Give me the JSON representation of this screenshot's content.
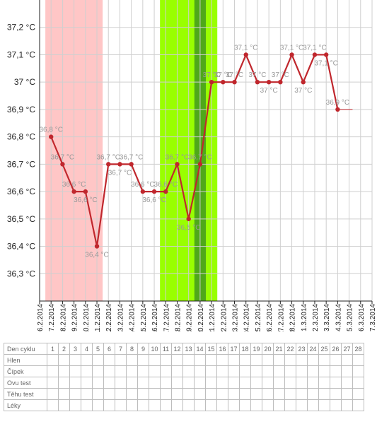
{
  "chart_data": {
    "type": "line",
    "title": "",
    "xlabel": "",
    "ylabel": "",
    "ylim": [
      36.2,
      37.3
    ],
    "y_ticks": [
      "36,3 °C",
      "36,4 °C",
      "36,5 °C",
      "36,6 °C",
      "36,7 °C",
      "36,8 °C",
      "36,9 °C",
      "37 °C",
      "37,1 °C",
      "37,2 °C"
    ],
    "y_tick_values": [
      36.3,
      36.4,
      36.5,
      36.6,
      36.7,
      36.8,
      36.9,
      37.0,
      37.1,
      37.2
    ],
    "x_labels": [
      "6.2.2014",
      "7.2.2014",
      "8.2.2014",
      "9.2.2014",
      "10.2.2014",
      "11.2.2014",
      "12.2.2014",
      "13.2.2014",
      "14.2.2014",
      "15.2.2014",
      "16.2.2014",
      "17.2.2014",
      "18.2.2014",
      "19.2.2014",
      "20.2.2014",
      "21.2.2014",
      "22.2.2014",
      "23.2.2014",
      "24.2.2014",
      "25.2.2014",
      "26.2.2014",
      "27.2.2014",
      "28.2.2014",
      "1.3.2014",
      "2.3.2014",
      "3.3.2014",
      "4.3.2014",
      "5.3.2014",
      "6.3.2014",
      "7.3.2014"
    ],
    "grid": true,
    "series": [
      {
        "color": "#c0272d",
        "x": [
          "7.2.2014",
          "8.2.2014",
          "9.2.2014",
          "10.2.2014",
          "11.2.2014",
          "12.2.2014",
          "13.2.2014",
          "14.2.2014",
          "15.2.2014",
          "16.2.2014",
          "17.2.2014",
          "18.2.2014",
          "19.2.2014",
          "20.2.2014",
          "21.2.2014",
          "22.2.2014",
          "23.2.2014",
          "24.2.2014",
          "25.2.2014",
          "26.2.2014",
          "27.2.2014",
          "28.2.2014",
          "1.3.2014",
          "2.3.2014",
          "3.3.2014",
          "4.3.2014"
        ],
        "values": [
          36.8,
          36.7,
          36.6,
          36.6,
          36.4,
          36.7,
          36.7,
          36.7,
          36.6,
          36.6,
          36.6,
          36.7,
          36.5,
          36.7,
          37.0,
          37.0,
          37.0,
          37.1,
          37.0,
          37.0,
          37.0,
          37.1,
          37.0,
          37.1,
          37.1,
          36.9
        ],
        "data_labels": [
          "36,8 °C",
          "36,7 °C",
          "36,6 °C",
          "36,6 °C",
          "36,4 °C",
          "36,7 °C",
          "36,7 °C",
          "36,7 °C",
          "36,6 °C",
          "36,6 °C",
          "36,6 °C",
          "36,7 °C",
          "36,5 °C",
          "36,7 °C",
          "37 °C",
          "37 °C",
          "37 °C",
          "37,1 °C",
          "37 °C",
          "37 °C",
          "37 °C",
          "37,1 °C",
          "37 °C",
          "37,1 °C",
          "37,1 °C",
          "36,9 °C"
        ],
        "label_side": [
          "above",
          "above",
          "above",
          "below",
          "below",
          "above",
          "below",
          "above",
          "above",
          "below",
          "above",
          "above",
          "below",
          "above",
          "above",
          "above",
          "above",
          "above",
          "above",
          "below",
          "above",
          "above",
          "below",
          "above",
          "below",
          "above"
        ]
      }
    ],
    "tail_line": {
      "from": "4.3.2014",
      "to": "5.3.2014",
      "value": 36.9
    },
    "bands": [
      {
        "from": 0.5,
        "to": 5.5,
        "color": "#ffc6c6"
      },
      {
        "from": 10.5,
        "to": 15.5,
        "color": "#99ff00"
      },
      {
        "from": 13.5,
        "to": 14.5,
        "color": "#4fa81a"
      }
    ]
  },
  "cycle_table": {
    "header_label": "Den cyklu",
    "days": [
      "1",
      "2",
      "3",
      "4",
      "5",
      "6",
      "7",
      "8",
      "9",
      "10",
      "11",
      "12",
      "13",
      "14",
      "15",
      "16",
      "17",
      "18",
      "19",
      "20",
      "21",
      "22",
      "23",
      "24",
      "25",
      "26",
      "27",
      "28"
    ],
    "rows": [
      "Hlen",
      "Čípek",
      "Ovu test",
      "Těhu test",
      "Léky"
    ]
  }
}
